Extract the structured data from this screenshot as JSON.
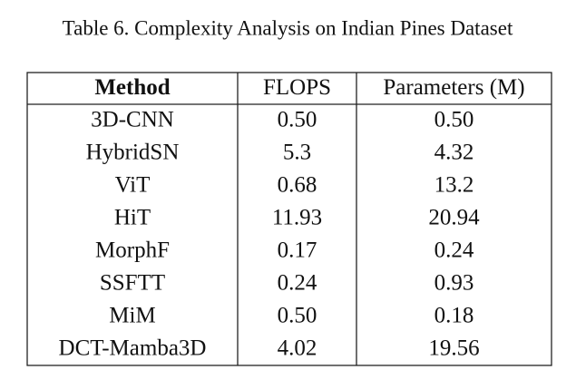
{
  "title": "Table 6. Complexity Analysis on Indian Pines Dataset",
  "table": {
    "header": [
      "Method",
      "FLOPS",
      "Parameters (M)"
    ],
    "rows": [
      [
        "3D-CNN",
        "0.50",
        "0.50"
      ],
      [
        "HybridSN",
        "5.3",
        "4.32"
      ],
      [
        "ViT",
        "0.68",
        "13.2"
      ],
      [
        "HiT",
        "11.93",
        "20.94"
      ],
      [
        "MorphF",
        "0.17",
        "0.24"
      ],
      [
        "SSFTT",
        "0.24",
        "0.93"
      ],
      [
        "MiM",
        "0.50",
        "0.18"
      ],
      [
        "DCT-Mamba3D",
        "4.02",
        "19.56"
      ]
    ]
  }
}
